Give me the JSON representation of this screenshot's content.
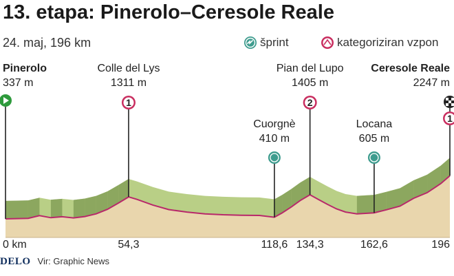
{
  "title": "13. etapa: Pinerolo–Ceresole Reale",
  "subtitle": "24. maj, 196 km",
  "legend": {
    "sprint": "šprint",
    "climb": "kategoriziran vzpon"
  },
  "footer": {
    "brand": "DELO",
    "source": "Vir: Graphic News"
  },
  "colors": {
    "fill_dark": "#7e9a52",
    "fill_light": "#b9cf86",
    "base": "#e9d6ad",
    "line": "#b8286a",
    "sprint": "#3e9c8e",
    "climb": "#c92d5f",
    "start": "#2e9a3c"
  },
  "chart_data": {
    "type": "area",
    "title": "13. etapa: Pinerolo–Ceresole Reale",
    "xlabel": "",
    "ylabel": "",
    "xlim": [
      0,
      196
    ],
    "x_ticks": [
      "0 km",
      "54,3",
      "118,6",
      "134,3",
      "162,6",
      "196"
    ],
    "profile": {
      "x": [
        0,
        10,
        15,
        20,
        25,
        30,
        35,
        40,
        45,
        50,
        54.3,
        58,
        65,
        72,
        80,
        88,
        96,
        104,
        112,
        118.6,
        122,
        126,
        130,
        134.3,
        138,
        142,
        146,
        150,
        155,
        162.6,
        168,
        174,
        180,
        186,
        192,
        196
      ],
      "elevation": [
        337,
        360,
        480,
        390,
        430,
        380,
        440,
        560,
        760,
        1050,
        1311,
        1200,
        950,
        750,
        640,
        560,
        520,
        500,
        490,
        410,
        600,
        860,
        1150,
        1405,
        1200,
        980,
        780,
        640,
        560,
        605,
        740,
        900,
        1250,
        1500,
        1900,
        2247
      ]
    },
    "points": [
      {
        "name": "Pinerolo",
        "km": 0,
        "elevation": 337,
        "label": "Pinerolo",
        "value_label": "337 m",
        "kind": "start"
      },
      {
        "name": "Colle del Lys",
        "km": 54.3,
        "elevation": 1311,
        "label": "Colle del Lys",
        "value_label": "1311 m",
        "kind": "climb",
        "category": "1"
      },
      {
        "name": "Cuorgnè",
        "km": 118.6,
        "elevation": 410,
        "label": "Cuorgnè",
        "value_label": "410 m",
        "kind": "sprint"
      },
      {
        "name": "Pian del Lupo",
        "km": 134.3,
        "elevation": 1405,
        "label": "Pian del Lupo",
        "value_label": "1405 m",
        "kind": "climb",
        "category": "2"
      },
      {
        "name": "Locana",
        "km": 162.6,
        "elevation": 605,
        "label": "Locana",
        "value_label": "605 m",
        "kind": "sprint"
      },
      {
        "name": "Ceresole Reale",
        "km": 196,
        "elevation": 2247,
        "label": "Ceresole Reale",
        "value_label": "2247 m",
        "kind": "finish",
        "category": "1"
      }
    ]
  }
}
